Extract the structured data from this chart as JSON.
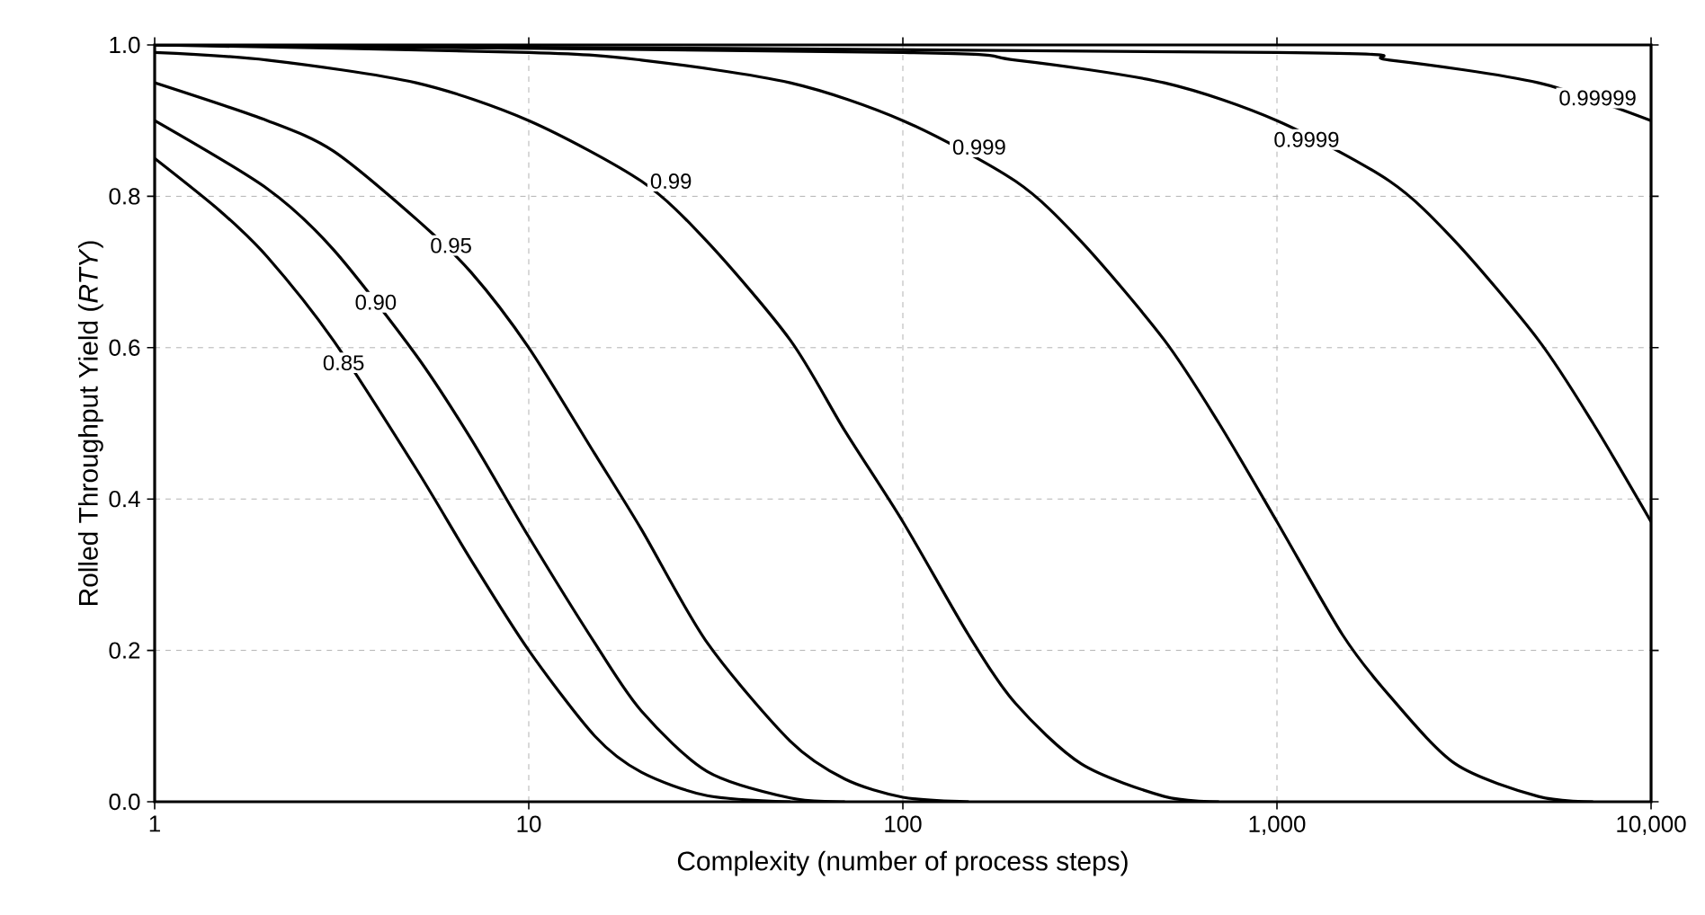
{
  "chart_data": {
    "type": "line",
    "xlabel": "Complexity (number of process steps)",
    "ylabel": "Rolled Throughput Yield (*RTY*)",
    "log": "x",
    "grid": true,
    "xlim": [
      1,
      10000
    ],
    "ylim": [
      0,
      1
    ],
    "xticks": [
      1,
      10,
      100,
      {
        "value": 1000,
        "label": "1,000"
      },
      {
        "value": 10000,
        "label": "10,000"
      }
    ],
    "yticks": [
      {
        "value": 0,
        "label": "0.0"
      },
      {
        "value": 0.2,
        "label": "0.2"
      },
      {
        "value": 0.4,
        "label": "0.4"
      },
      {
        "value": 0.6,
        "label": "0.6"
      },
      {
        "value": 0.8,
        "label": "0.8"
      },
      {
        "value": 1,
        "label": "1.0"
      }
    ],
    "series": [
      {
        "color": "#000000",
        "x": [
          1,
          1.5,
          2,
          3,
          5,
          7,
          10,
          15,
          20,
          30,
          50
        ],
        "values": [
          0.85,
          0.78,
          0.72,
          0.61,
          0.44,
          0.32,
          0.2,
          0.087,
          0.039,
          0.008,
          0
        ]
      },
      {
        "color": "#000000",
        "x": [
          1,
          2,
          3,
          5,
          7,
          10,
          15,
          20,
          30,
          50,
          70
        ],
        "values": [
          0.9,
          0.81,
          0.73,
          0.59,
          0.48,
          0.35,
          0.21,
          0.12,
          0.04,
          0.005,
          0
        ]
      },
      {
        "color": "#000000",
        "x": [
          1,
          2,
          3,
          5,
          7,
          10,
          15,
          20,
          30,
          50,
          70,
          100,
          150
        ],
        "values": [
          0.95,
          0.9,
          0.86,
          0.77,
          0.7,
          0.6,
          0.46,
          0.36,
          0.21,
          0.08,
          0.03,
          0.006,
          0
        ]
      },
      {
        "color": "#000000",
        "x": [
          1,
          2,
          5,
          10,
          20,
          30,
          50,
          70,
          100,
          150,
          200,
          300,
          500,
          700
        ],
        "values": [
          0.99,
          0.98,
          0.95,
          0.9,
          0.82,
          0.74,
          0.61,
          0.49,
          0.37,
          0.22,
          0.13,
          0.05,
          0.007,
          0
        ]
      },
      {
        "color": "#000000",
        "x": [
          1,
          10,
          20,
          50,
          100,
          200,
          300,
          500,
          700,
          1000,
          1500,
          2000,
          3000,
          5000,
          7000
        ],
        "values": [
          1,
          0.99,
          0.98,
          0.95,
          0.9,
          0.82,
          0.74,
          0.61,
          0.5,
          0.37,
          0.22,
          0.14,
          0.05,
          0.007,
          0
        ]
      },
      {
        "color": "#000000",
        "x": [
          1,
          100,
          200,
          500,
          1000,
          2000,
          3000,
          5000,
          7000,
          10000
        ],
        "values": [
          1,
          0.99,
          0.98,
          0.95,
          0.9,
          0.82,
          0.74,
          0.61,
          0.5,
          0.37
        ]
      },
      {
        "color": "#000000",
        "x": [
          1,
          1000,
          2000,
          5000,
          10000
        ],
        "values": [
          1,
          0.99,
          0.98,
          0.95,
          0.9
        ]
      }
    ],
    "annotations": [
      {
        "text": "0.85",
        "x": 3.2,
        "y": 0.58
      },
      {
        "text": "0.90",
        "x": 3.9,
        "y": 0.66
      },
      {
        "text": "0.95",
        "x": 6.2,
        "y": 0.735
      },
      {
        "text": "0.99",
        "x": 24,
        "y": 0.82
      },
      {
        "text": "0.999",
        "x": 160,
        "y": 0.865
      },
      {
        "text": "0.9999",
        "x": 1200,
        "y": 0.875
      },
      {
        "text": "0.99999",
        "x": 7200,
        "y": 0.93
      }
    ]
  }
}
